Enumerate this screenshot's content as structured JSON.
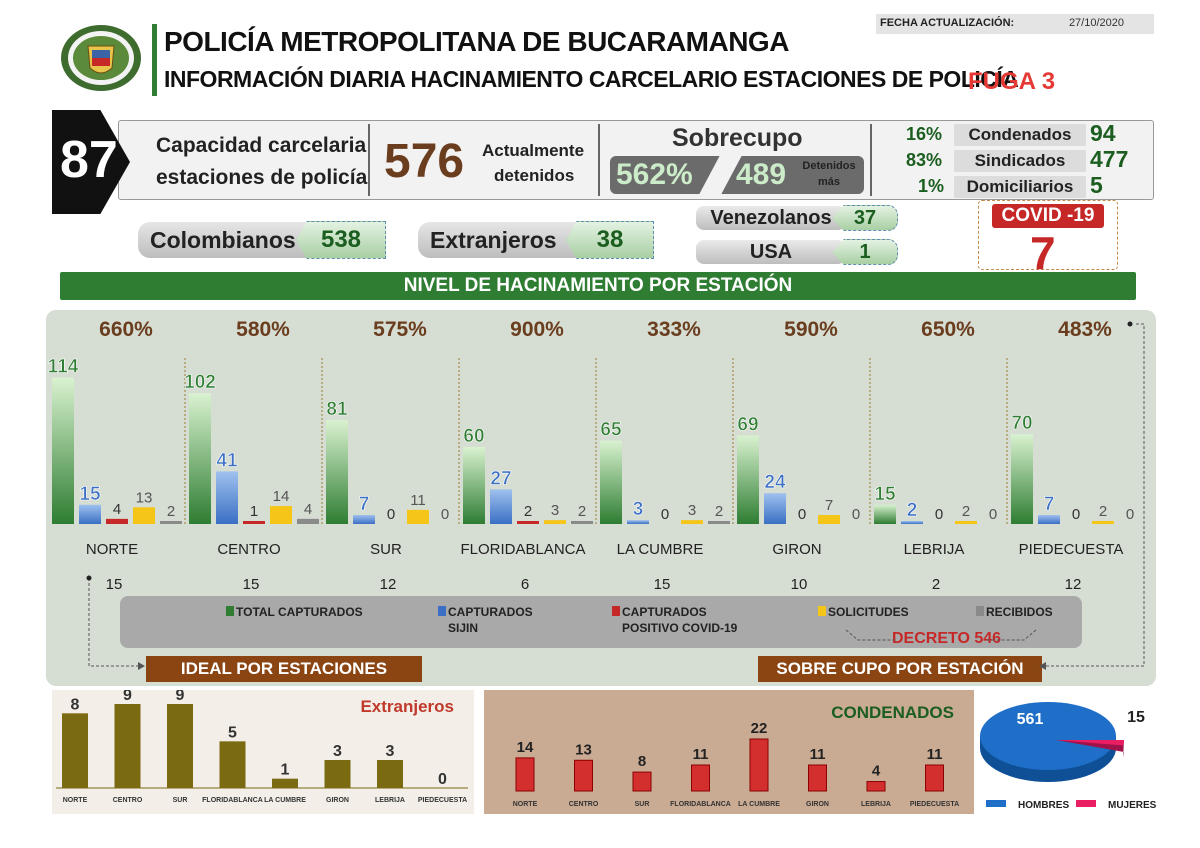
{
  "header": {
    "title": "POLICÍA METROPOLITANA DE BUCARAMANGA",
    "subtitle": "INFORMACIÓN DIARIA HACINAMIENTO CARCELARIO ESTACIONES DE POLICÍA",
    "fuga": "FUGA 3",
    "fecha_label": "FECHA ACTUALIZACIÓN:",
    "fecha_value": "27/10/2020"
  },
  "summary": {
    "capacity": "87",
    "capacity_label_1": "Capacidad carcelaria",
    "capacity_label_2": "estaciones de policía",
    "detained": "576",
    "detained_label_1": "Actualmente",
    "detained_label_2": "detenidos",
    "overcap_title": "Sobrecupo",
    "overcap_pct": "562%",
    "overcap_num": "489",
    "overcap_label_1": "Detenidos",
    "overcap_label_2": "más",
    "stats": [
      {
        "pct": "16%",
        "label": "Condenados",
        "value": "94"
      },
      {
        "pct": "83%",
        "label": "Sindicados",
        "value": "477"
      },
      {
        "pct": "1%",
        "label": "Domiciliarios",
        "value": "5"
      }
    ]
  },
  "nationality": {
    "colombianos_label": "Colombianos",
    "colombianos": "538",
    "extranjeros_label": "Extranjeros",
    "extranjeros": "38",
    "venezolanos_label": "Venezolanos",
    "venezolanos": "37",
    "usa_label": "USA",
    "usa": "1",
    "covid_label": "COVID -19",
    "covid": "7"
  },
  "banner": "NIVEL DE HACINAMIENTO POR ESTACIÓN",
  "panel_labels": {
    "ideal": "IDEAL POR ESTACIONES",
    "sobre": "SOBRE CUPO POR ESTACIÓN",
    "decreto": "DECRETO 546"
  },
  "colors": {
    "total": "#2e7d32",
    "sijin": "#3a6fc4",
    "covid": "#c62828",
    "solicitudes": "#f5c518",
    "recibidos": "#8a8a8a",
    "brown": "#6b3d1f",
    "olive": "#7a6a12",
    "red": "#d32f2f",
    "pie_hombres": "#1f6fc9",
    "pie_mujeres": "#e91e63"
  },
  "chart_data": [
    {
      "type": "bar",
      "title": "NIVEL DE HACINAMIENTO POR ESTACIÓN",
      "categories": [
        "NORTE",
        "CENTRO",
        "SUR",
        "FLORIDABLANCA",
        "LA CUMBRE",
        "GIRON",
        "LEBRIJA",
        "PIEDECUESTA"
      ],
      "percentages": [
        "660%",
        "580%",
        "575%",
        "900%",
        "333%",
        "590%",
        "650%",
        "483%"
      ],
      "ideal": [
        "15",
        "15",
        "12",
        "6",
        "15",
        "10",
        "2",
        "12"
      ],
      "series": [
        {
          "name": "TOTAL CAPTURADOS",
          "values": [
            114,
            102,
            81,
            60,
            65,
            69,
            15,
            70
          ]
        },
        {
          "name": "CAPTURADOS SIJIN",
          "values": [
            15,
            41,
            7,
            27,
            3,
            24,
            2,
            7
          ]
        },
        {
          "name": "CAPTURADOS POSITIVO COVID-19",
          "values": [
            4,
            1,
            0,
            2,
            0,
            0,
            0,
            0
          ]
        },
        {
          "name": "SOLICITUDES",
          "values": [
            13,
            14,
            11,
            3,
            3,
            7,
            2,
            2
          ]
        },
        {
          "name": "RECIBIDOS",
          "values": [
            2,
            4,
            0,
            2,
            2,
            0,
            0,
            0
          ]
        }
      ],
      "legend": [
        "TOTAL CAPTURADOS",
        "CAPTURADOS",
        "SIJIN",
        "CAPTURADOS",
        "POSITIVO COVID-19",
        "SOLICITUDES",
        "RECIBIDOS"
      ],
      "ylim": [
        0,
        120
      ]
    },
    {
      "type": "bar",
      "title": "Extranjeros",
      "categories": [
        "NORTE",
        "CENTRO",
        "SUR",
        "FLORIDABLANCA",
        "LA CUMBRE",
        "GIRON",
        "LEBRIJA",
        "PIEDECUESTA"
      ],
      "values": [
        8,
        9,
        9,
        5,
        1,
        3,
        3,
        0
      ],
      "ylim": [
        0,
        9
      ]
    },
    {
      "type": "bar",
      "title": "CONDENADOS",
      "categories": [
        "NORTE",
        "CENTRO",
        "SUR",
        "FLORIDABLANCA",
        "LA CUMBRE",
        "GIRON",
        "LEBRIJA",
        "PIEDECUESTA"
      ],
      "values": [
        14,
        13,
        8,
        11,
        22,
        11,
        4,
        11
      ],
      "ylim": [
        0,
        22
      ]
    },
    {
      "type": "pie",
      "labels": [
        "HOMBRES",
        "MUJERES"
      ],
      "values": [
        561,
        15
      ]
    }
  ]
}
